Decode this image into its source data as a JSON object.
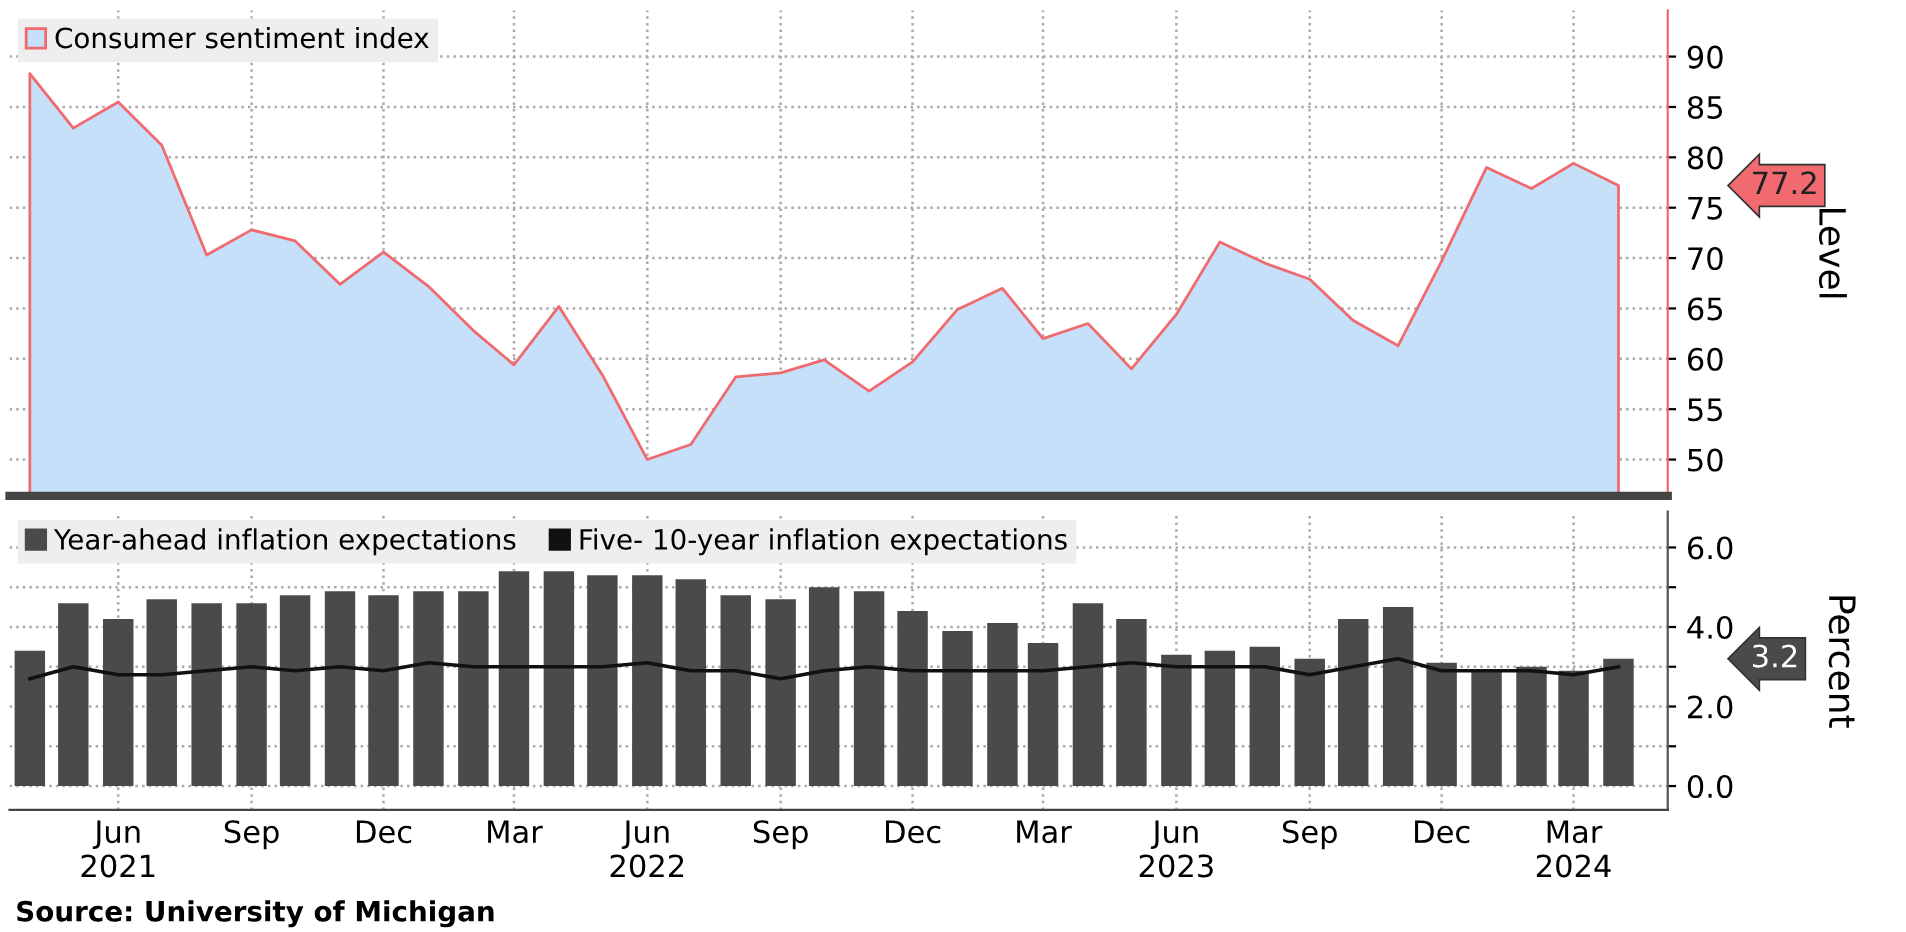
{
  "chart_data": [
    {
      "type": "area",
      "ylabel": "Level",
      "x": [
        "2021-04",
        "2021-05",
        "2021-06",
        "2021-07",
        "2021-08",
        "2021-09",
        "2021-10",
        "2021-11",
        "2021-12",
        "2022-01",
        "2022-02",
        "2022-03",
        "2022-04",
        "2022-05",
        "2022-06",
        "2022-07",
        "2022-08",
        "2022-09",
        "2022-10",
        "2022-11",
        "2022-12",
        "2023-01",
        "2023-02",
        "2023-03",
        "2023-04",
        "2023-05",
        "2023-06",
        "2023-07",
        "2023-08",
        "2023-09",
        "2023-10",
        "2023-11",
        "2023-12",
        "2024-01",
        "2024-02",
        "2024-03",
        "2024-04"
      ],
      "series": [
        {
          "name": "Consumer sentiment index",
          "color": "#c6e0fa",
          "values": [
            88.3,
            82.9,
            85.5,
            81.2,
            70.3,
            72.8,
            71.7,
            67.4,
            70.6,
            67.2,
            62.8,
            59.4,
            65.2,
            58.4,
            50.0,
            51.5,
            58.2,
            58.6,
            59.9,
            56.8,
            59.7,
            64.9,
            67.0,
            62.0,
            63.5,
            59.0,
            64.4,
            71.6,
            69.5,
            67.9,
            63.8,
            61.3,
            69.7,
            79.0,
            76.9,
            79.4,
            77.2
          ]
        }
      ],
      "xlim": [
        "2021-03-18",
        "2024-05-05"
      ],
      "ylim": [
        46.4,
        94.6
      ],
      "yticks": [
        50,
        55,
        60,
        65,
        70,
        75,
        80,
        85,
        90
      ],
      "annotations": [
        "77.2"
      ],
      "grid": true,
      "legend": "top left",
      "tick_labels": "y"
    },
    {
      "type": "bar",
      "ylabel": "Percent",
      "x": [
        "2021-04",
        "2021-05",
        "2021-06",
        "2021-07",
        "2021-08",
        "2021-09",
        "2021-10",
        "2021-11",
        "2021-12",
        "2022-01",
        "2022-02",
        "2022-03",
        "2022-04",
        "2022-05",
        "2022-06",
        "2022-07",
        "2022-08",
        "2022-09",
        "2022-10",
        "2022-11",
        "2022-12",
        "2023-01",
        "2023-02",
        "2023-03",
        "2023-04",
        "2023-05",
        "2023-06",
        "2023-07",
        "2023-08",
        "2023-09",
        "2023-10",
        "2023-11",
        "2023-12",
        "2024-01",
        "2024-02",
        "2024-03",
        "2024-04"
      ],
      "series": [
        {
          "name": "Year-ahead inflation expectations",
          "type": "bar",
          "color": "#4a4a4a",
          "values": [
            3.4,
            4.6,
            4.2,
            4.7,
            4.6,
            4.6,
            4.8,
            4.9,
            4.8,
            4.9,
            4.9,
            5.4,
            5.4,
            5.3,
            5.3,
            5.2,
            4.8,
            4.7,
            5.0,
            4.9,
            4.4,
            3.9,
            4.1,
            3.6,
            4.6,
            4.2,
            3.3,
            3.4,
            3.5,
            3.2,
            4.2,
            4.5,
            3.1,
            2.9,
            3.0,
            2.9,
            3.2
          ]
        },
        {
          "name": "Five- 10-year inflation expectations",
          "type": "line",
          "color": "#111111",
          "values": [
            2.7,
            3.0,
            2.8,
            2.8,
            2.9,
            3.0,
            2.9,
            3.0,
            2.9,
            3.1,
            3.0,
            3.0,
            3.0,
            3.0,
            3.1,
            2.9,
            2.9,
            2.7,
            2.9,
            3.0,
            2.9,
            2.9,
            2.9,
            2.9,
            3.0,
            3.1,
            3.0,
            3.0,
            3.0,
            2.8,
            3.0,
            3.2,
            2.9,
            2.9,
            2.9,
            2.8,
            3.0
          ]
        }
      ],
      "xlim": [
        "2021-03-18",
        "2024-05-05"
      ],
      "ylim": [
        -0.6,
        6.9
      ],
      "yticks": [
        {
          "value": 0,
          "label": "0.0"
        },
        {
          "value": 1,
          "label": null
        },
        {
          "value": 2,
          "label": "2.0"
        },
        {
          "value": 3,
          "label": null
        },
        {
          "value": 4,
          "label": "4.0"
        },
        {
          "value": 5,
          "label": null
        },
        {
          "value": 6,
          "label": "6.0"
        }
      ],
      "xticks": [
        {
          "value": "2021-06",
          "label": "Jun\n2021"
        },
        {
          "value": "2021-09",
          "label": "Sep"
        },
        {
          "value": "2021-12",
          "label": "Dec"
        },
        {
          "value": "2022-03",
          "label": "Mar"
        },
        {
          "value": "2022-06",
          "label": "Jun\n2022"
        },
        {
          "value": "2022-09",
          "label": "Sep"
        },
        {
          "value": "2022-12",
          "label": "Dec"
        },
        {
          "value": "2023-03",
          "label": "Mar"
        },
        {
          "value": "2023-06",
          "label": "Jun\n2023"
        },
        {
          "value": "2023-09",
          "label": "Sep"
        },
        {
          "value": "2023-12",
          "label": "Dec"
        },
        {
          "value": "2024-03",
          "label": "Mar\n2024"
        }
      ],
      "annotations": [
        "3.2",
        "Source: University of Michigan"
      ],
      "grid": true,
      "legend": "top left"
    }
  ]
}
